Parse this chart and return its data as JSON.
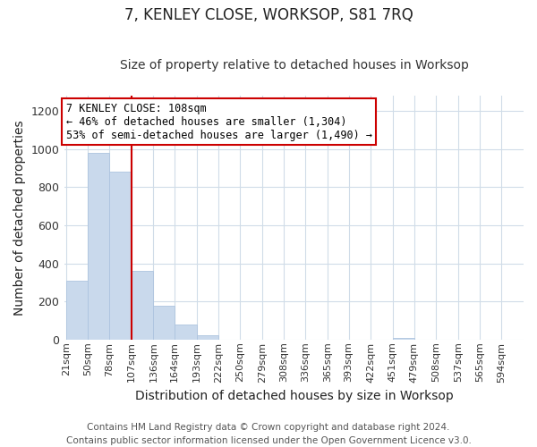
{
  "title": "7, KENLEY CLOSE, WORKSOP, S81 7RQ",
  "subtitle": "Size of property relative to detached houses in Worksop",
  "xlabel": "Distribution of detached houses by size in Worksop",
  "ylabel": "Number of detached properties",
  "footer_lines": [
    "Contains HM Land Registry data © Crown copyright and database right 2024.",
    "Contains public sector information licensed under the Open Government Licence v3.0."
  ],
  "bar_edges": [
    21,
    50,
    78,
    107,
    136,
    164,
    193,
    222,
    250,
    279,
    308,
    336,
    365,
    393,
    422,
    451,
    479,
    508,
    537,
    565,
    594
  ],
  "bar_heights": [
    310,
    980,
    880,
    360,
    175,
    80,
    22,
    0,
    0,
    0,
    0,
    0,
    0,
    0,
    0,
    8,
    0,
    0,
    0,
    0
  ],
  "bar_color": "#c9d9ec",
  "bar_edgecolor": "#adc4df",
  "vline_x": 107,
  "vline_color": "#cc0000",
  "annotation_line1": "7 KENLEY CLOSE: 108sqm",
  "annotation_line2": "← 46% of detached houses are smaller (1,304)",
  "annotation_line3": "53% of semi-detached houses are larger (1,490) →",
  "annotation_box_edgecolor": "#cc0000",
  "annotation_box_facecolor": "#ffffff",
  "ylim": [
    0,
    1280
  ],
  "yticks": [
    0,
    200,
    400,
    600,
    800,
    1000,
    1200
  ],
  "tick_labels": [
    "21sqm",
    "50sqm",
    "78sqm",
    "107sqm",
    "136sqm",
    "164sqm",
    "193sqm",
    "222sqm",
    "250sqm",
    "279sqm",
    "308sqm",
    "336sqm",
    "365sqm",
    "393sqm",
    "422sqm",
    "451sqm",
    "479sqm",
    "508sqm",
    "537sqm",
    "565sqm",
    "594sqm"
  ],
  "background_color": "#ffffff",
  "grid_color": "#d0dce8",
  "title_fontsize": 12,
  "subtitle_fontsize": 10,
  "axis_label_fontsize": 10,
  "tick_fontsize": 8,
  "annotation_fontsize": 8.5,
  "footer_fontsize": 7.5
}
